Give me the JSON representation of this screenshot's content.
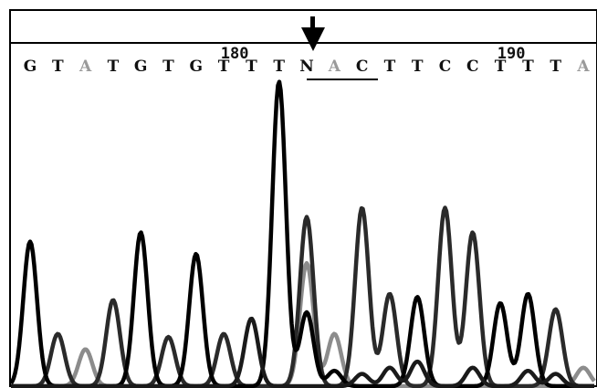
{
  "chart_data": {
    "type": "line",
    "title": "",
    "xlabel": "",
    "ylabel": "",
    "position_labels": [
      {
        "position": 180,
        "label": "180"
      },
      {
        "position": 190,
        "label": "190"
      }
    ],
    "start_position": 173,
    "bases": [
      "G",
      "T",
      "A",
      "T",
      "G",
      "T",
      "G",
      "T",
      "T",
      "T",
      "N",
      "A",
      "C",
      "T",
      "T",
      "C",
      "C",
      "T",
      "T",
      "T",
      "A"
    ],
    "marked_base": {
      "index": 10,
      "label": "N"
    },
    "base_colors": {
      "A": "#9a9a9a",
      "C": "#111111",
      "G": "#111111",
      "T": "#111111",
      "N": "#111111"
    },
    "series": [
      {
        "channel": "A",
        "color": "#8c8c8c",
        "peaks": [
          {
            "i": 2,
            "h": 0.12
          },
          {
            "i": 10,
            "h": 0.4
          },
          {
            "i": 11,
            "h": 0.17
          },
          {
            "i": 20,
            "h": 0.06
          }
        ]
      },
      {
        "channel": "C",
        "color": "#2a2a2a",
        "peaks": [
          {
            "i": 1,
            "h": 0.17
          },
          {
            "i": 3,
            "h": 0.28
          },
          {
            "i": 5,
            "h": 0.16
          },
          {
            "i": 7,
            "h": 0.17
          },
          {
            "i": 10,
            "h": 0.55
          },
          {
            "i": 12,
            "h": 0.58
          },
          {
            "i": 13,
            "h": 0.3
          },
          {
            "i": 15,
            "h": 0.58
          },
          {
            "i": 16,
            "h": 0.5
          },
          {
            "i": 19,
            "h": 0.25
          }
        ]
      },
      {
        "channel": "G",
        "color": "#000000",
        "peaks": [
          {
            "i": 0,
            "h": 0.47
          },
          {
            "i": 4,
            "h": 0.5
          },
          {
            "i": 6,
            "h": 0.43
          },
          {
            "i": 9,
            "h": 0.99
          },
          {
            "i": 10,
            "h": 0.24
          },
          {
            "i": 11,
            "h": 0.05
          },
          {
            "i": 14,
            "h": 0.29
          },
          {
            "i": 17,
            "h": 0.27
          },
          {
            "i": 18,
            "h": 0.3
          }
        ]
      },
      {
        "channel": "T",
        "color": "#1a1a1a",
        "peaks": [
          {
            "i": 8,
            "h": 0.22
          },
          {
            "i": 12,
            "h": 0.04
          },
          {
            "i": 13,
            "h": 0.06
          },
          {
            "i": 14,
            "h": 0.08
          },
          {
            "i": 16,
            "h": 0.06
          },
          {
            "i": 18,
            "h": 0.05
          },
          {
            "i": 19,
            "h": 0.04
          }
        ]
      }
    ]
  }
}
